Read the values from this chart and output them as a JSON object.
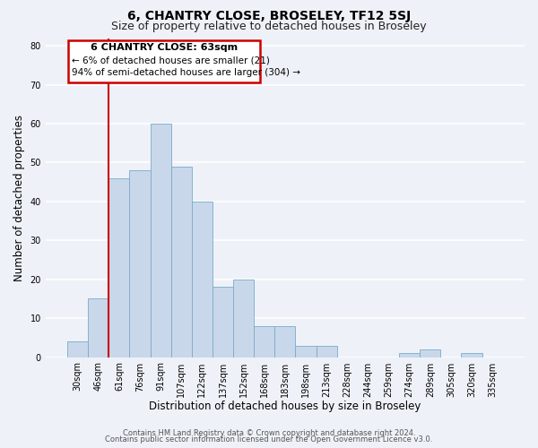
{
  "title": "6, CHANTRY CLOSE, BROSELEY, TF12 5SJ",
  "subtitle": "Size of property relative to detached houses in Broseley",
  "xlabel": "Distribution of detached houses by size in Broseley",
  "ylabel": "Number of detached properties",
  "bin_labels": [
    "30sqm",
    "46sqm",
    "61sqm",
    "76sqm",
    "91sqm",
    "107sqm",
    "122sqm",
    "137sqm",
    "152sqm",
    "168sqm",
    "183sqm",
    "198sqm",
    "213sqm",
    "228sqm",
    "244sqm",
    "259sqm",
    "274sqm",
    "289sqm",
    "305sqm",
    "320sqm",
    "335sqm"
  ],
  "bar_heights": [
    4,
    15,
    46,
    48,
    60,
    49,
    40,
    18,
    20,
    8,
    8,
    3,
    3,
    0,
    0,
    0,
    1,
    2,
    0,
    1,
    0
  ],
  "bar_color": "#c8d8ea",
  "bar_edge_color": "#7aaac8",
  "ylim": [
    0,
    82
  ],
  "yticks": [
    0,
    10,
    20,
    30,
    40,
    50,
    60,
    70,
    80
  ],
  "vline_color": "#cc0000",
  "vline_index": 2,
  "annotation_title": "6 CHANTRY CLOSE: 63sqm",
  "annotation_line1": "← 6% of detached houses are smaller (21)",
  "annotation_line2": "94% of semi-detached houses are larger (304) →",
  "annotation_box_color": "#cc0000",
  "footer_line1": "Contains HM Land Registry data © Crown copyright and database right 2024.",
  "footer_line2": "Contains public sector information licensed under the Open Government Licence v3.0.",
  "background_color": "#eef2f8",
  "grid_color": "#ffffff",
  "title_fontsize": 10,
  "subtitle_fontsize": 9,
  "axis_label_fontsize": 8.5,
  "tick_fontsize": 7,
  "footer_fontsize": 6,
  "ann_fontsize_title": 8,
  "ann_fontsize_body": 7.5
}
